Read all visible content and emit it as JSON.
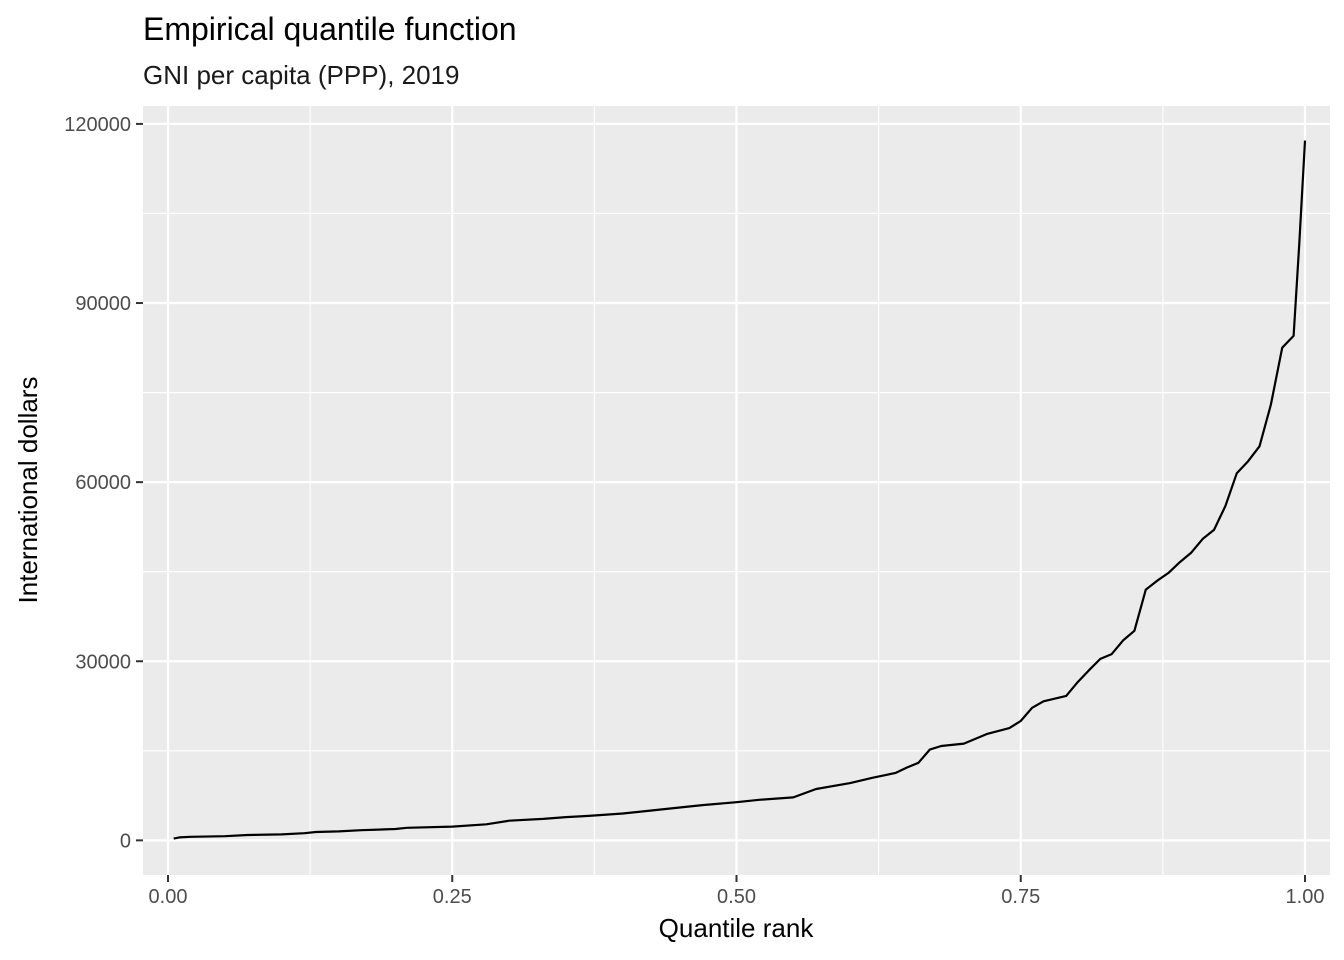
{
  "chart_data": {
    "type": "line",
    "title": "Empirical quantile function",
    "subtitle": "GNI per capita (PPP), 2019",
    "xlabel": "Quantile rank",
    "ylabel": "International dollars",
    "xlim": [
      -0.022,
      1.022
    ],
    "ylim": [
      -5800,
      123000
    ],
    "x_ticks": [
      0.0,
      0.25,
      0.5,
      0.75,
      1.0
    ],
    "x_tick_labels": [
      "0.00",
      "0.25",
      "0.50",
      "0.75",
      "1.00"
    ],
    "y_ticks": [
      0,
      30000,
      60000,
      90000,
      120000
    ],
    "y_tick_labels": [
      "0",
      "30000",
      "60000",
      "90000",
      "120000"
    ],
    "grid": true,
    "line_color": "#000000",
    "panel_color": "#ebebeb",
    "x": [
      0.005,
      0.01,
      0.02,
      0.05,
      0.07,
      0.1,
      0.12,
      0.13,
      0.15,
      0.17,
      0.2,
      0.21,
      0.25,
      0.28,
      0.3,
      0.33,
      0.35,
      0.37,
      0.4,
      0.42,
      0.45,
      0.47,
      0.5,
      0.52,
      0.55,
      0.57,
      0.6,
      0.62,
      0.64,
      0.65,
      0.66,
      0.67,
      0.68,
      0.7,
      0.72,
      0.74,
      0.75,
      0.76,
      0.77,
      0.79,
      0.8,
      0.81,
      0.82,
      0.83,
      0.84,
      0.85,
      0.86,
      0.87,
      0.88,
      0.89,
      0.9,
      0.91,
      0.92,
      0.93,
      0.94,
      0.95,
      0.96,
      0.97,
      0.98,
      0.985,
      0.99,
      0.995,
      1.0
    ],
    "y": [
      300,
      500,
      600,
      700,
      900,
      1000,
      1200,
      1400,
      1500,
      1700,
      1900,
      2100,
      2300,
      2700,
      3300,
      3600,
      3900,
      4100,
      4500,
      4900,
      5500,
      5900,
      6400,
      6800,
      7200,
      8600,
      9600,
      10500,
      11300,
      12200,
      13000,
      15200,
      15800,
      16200,
      17800,
      18800,
      20000,
      22200,
      23300,
      24200,
      26500,
      28500,
      30400,
      31200,
      33500,
      35100,
      42000,
      43500,
      44800,
      46600,
      48200,
      50500,
      52000,
      56000,
      61500,
      63500,
      66000,
      73000,
      82500,
      83500,
      84500,
      100000,
      117200
    ]
  }
}
